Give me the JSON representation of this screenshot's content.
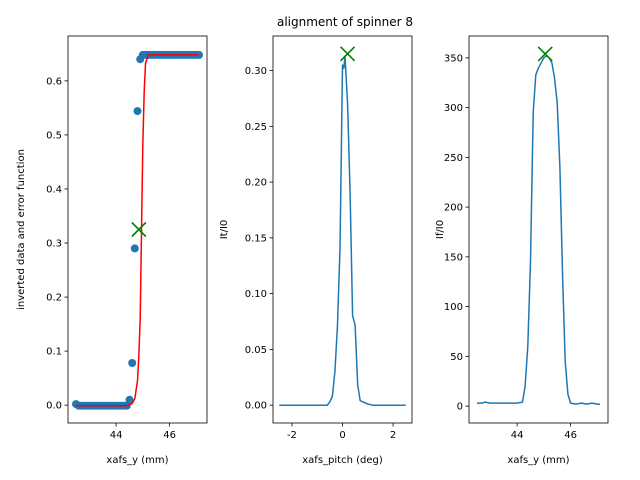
{
  "figure": {
    "title": "alignment of spinner 8"
  },
  "colors": {
    "data_blue": "#1f77b4",
    "fit_red": "#ff0000",
    "marker_green": "#008000"
  },
  "chart_data": [
    {
      "type": "scatter",
      "xlabel": "xafs_y (mm)",
      "ylabel": "inverted data and error function",
      "xlim": [
        42.2,
        47.4
      ],
      "ylim": [
        -0.033,
        0.683
      ],
      "xticks": [
        44,
        46
      ],
      "yticks": [
        0.0,
        0.1,
        0.2,
        0.3,
        0.4,
        0.5,
        0.6
      ],
      "ytick_format": "1",
      "series": [
        {
          "kind": "points",
          "x": [
            42.5,
            42.6,
            42.7,
            42.8,
            42.9,
            43.0,
            43.1,
            43.2,
            43.3,
            43.4,
            43.5,
            43.6,
            43.7,
            43.8,
            43.9,
            44.0,
            44.1,
            44.2,
            44.3,
            44.4,
            44.5,
            44.6,
            44.7,
            44.8,
            44.9,
            45.0,
            45.1,
            45.2,
            45.3,
            45.4,
            45.5,
            45.6,
            45.7,
            45.8,
            45.9,
            46.0,
            46.1,
            46.2,
            46.3,
            46.4,
            46.5,
            46.6,
            46.7,
            46.8,
            46.9,
            47.0,
            47.1
          ],
          "y": [
            0.002,
            -0.001,
            -0.001,
            -0.001,
            -0.001,
            -0.001,
            -0.001,
            -0.001,
            -0.001,
            -0.001,
            -0.001,
            -0.001,
            -0.001,
            -0.001,
            -0.001,
            -0.001,
            -0.001,
            -0.001,
            -0.001,
            -0.001,
            0.01,
            0.078,
            0.29,
            0.544,
            0.64,
            0.648,
            0.648,
            0.648,
            0.648,
            0.648,
            0.648,
            0.648,
            0.648,
            0.648,
            0.648,
            0.648,
            0.648,
            0.648,
            0.648,
            0.648,
            0.648,
            0.648,
            0.648,
            0.648,
            0.648,
            0.648,
            0.648
          ]
        },
        {
          "kind": "line",
          "x": [
            42.5,
            44.4,
            44.6,
            44.7,
            44.8,
            44.85,
            44.9,
            44.95,
            45.0,
            45.05,
            45.1,
            45.2,
            47.1
          ],
          "y": [
            -0.001,
            -0.001,
            0.003,
            0.012,
            0.045,
            0.09,
            0.16,
            0.32,
            0.48,
            0.58,
            0.632,
            0.648,
            0.648
          ]
        },
        {
          "kind": "marker",
          "x": [
            44.85
          ],
          "y": [
            0.325
          ]
        }
      ]
    },
    {
      "type": "line",
      "xlabel": "xafs_pitch (deg)",
      "ylabel": "It/I0",
      "xlim": [
        -2.75,
        2.75
      ],
      "ylim": [
        -0.016,
        0.331
      ],
      "xticks": [
        -2,
        0,
        2
      ],
      "yticks": [
        0.0,
        0.05,
        0.1,
        0.15,
        0.2,
        0.25,
        0.3
      ],
      "ytick_format": "2",
      "series": [
        {
          "kind": "line",
          "x": [
            -2.5,
            -0.6,
            -0.5,
            -0.4,
            -0.3,
            -0.2,
            -0.1,
            0.0,
            0.05,
            0.1,
            0.2,
            0.3,
            0.4,
            0.5,
            0.6,
            0.7,
            0.8,
            1.0,
            1.2,
            2.5
          ],
          "y": [
            0.0,
            0.0,
            0.003,
            0.008,
            0.03,
            0.07,
            0.14,
            0.305,
            0.302,
            0.313,
            0.27,
            0.19,
            0.08,
            0.072,
            0.018,
            0.004,
            0.003,
            0.001,
            0.0,
            0.0
          ]
        },
        {
          "kind": "marker",
          "x": [
            0.2
          ],
          "y": [
            0.315
          ]
        }
      ]
    },
    {
      "type": "line",
      "xlabel": "xafs_y (mm)",
      "ylabel": "If/I0",
      "xlim": [
        42.2,
        47.4
      ],
      "ylim": [
        -17,
        372
      ],
      "xticks": [
        44,
        46
      ],
      "yticks": [
        0,
        50,
        100,
        150,
        200,
        250,
        300,
        350
      ],
      "ytick_format": "0",
      "series": [
        {
          "kind": "line",
          "x": [
            42.5,
            42.7,
            42.8,
            43.0,
            43.2,
            43.4,
            43.6,
            43.8,
            44.0,
            44.2,
            44.3,
            44.4,
            44.5,
            44.6,
            44.7,
            44.8,
            45.0,
            45.1,
            45.2,
            45.3,
            45.4,
            45.5,
            45.6,
            45.7,
            45.8,
            45.9,
            46.0,
            46.2,
            46.4,
            46.6,
            46.8,
            47.0,
            47.1
          ],
          "y": [
            3,
            3,
            4,
            3,
            3,
            3,
            3,
            3,
            3,
            4,
            20,
            60,
            145,
            295,
            333,
            340,
            350,
            352,
            350,
            345,
            330,
            305,
            240,
            130,
            45,
            12,
            3,
            2,
            3,
            2,
            3,
            2,
            2
          ]
        },
        {
          "kind": "marker",
          "x": [
            45.05
          ],
          "y": [
            354
          ]
        }
      ]
    }
  ]
}
